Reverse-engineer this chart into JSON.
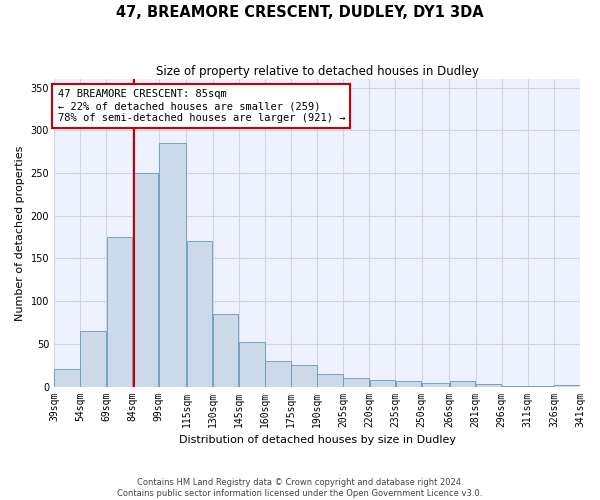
{
  "title": "47, BREAMORE CRESCENT, DUDLEY, DY1 3DA",
  "subtitle": "Size of property relative to detached houses in Dudley",
  "xlabel": "Distribution of detached houses by size in Dudley",
  "ylabel": "Number of detached properties",
  "footnote1": "Contains HM Land Registry data © Crown copyright and database right 2024.",
  "footnote2": "Contains public sector information licensed under the Open Government Licence v3.0.",
  "bar_left_edges": [
    39,
    54,
    69,
    84,
    99,
    115,
    130,
    145,
    160,
    175,
    190,
    205,
    220,
    235,
    250,
    266,
    281,
    296,
    311,
    326
  ],
  "bar_widths": [
    15,
    15,
    15,
    15,
    16,
    15,
    15,
    15,
    15,
    15,
    15,
    15,
    15,
    15,
    16,
    15,
    15,
    15,
    15,
    15
  ],
  "bar_heights": [
    20,
    65,
    175,
    250,
    285,
    170,
    85,
    52,
    30,
    25,
    15,
    10,
    8,
    6,
    4,
    6,
    3,
    1,
    1,
    2
  ],
  "bar_color": "#ccd9e8",
  "bar_edgecolor": "#6699bb",
  "grid_color": "#d0d4e8",
  "tick_labels": [
    "39sqm",
    "54sqm",
    "69sqm",
    "84sqm",
    "99sqm",
    "115sqm",
    "130sqm",
    "145sqm",
    "160sqm",
    "175sqm",
    "190sqm",
    "205sqm",
    "220sqm",
    "235sqm",
    "250sqm",
    "266sqm",
    "281sqm",
    "296sqm",
    "311sqm",
    "326sqm",
    "341sqm"
  ],
  "vline_x": 85,
  "vline_color": "#cc0000",
  "annotation_text": "47 BREAMORE CRESCENT: 85sqm\n← 22% of detached houses are smaller (259)\n78% of semi-detached houses are larger (921) →",
  "annotation_box_color": "#cc0000",
  "ylim": [
    0,
    360
  ],
  "yticks": [
    0,
    50,
    100,
    150,
    200,
    250,
    300,
    350
  ],
  "background_color": "#eef2ff"
}
